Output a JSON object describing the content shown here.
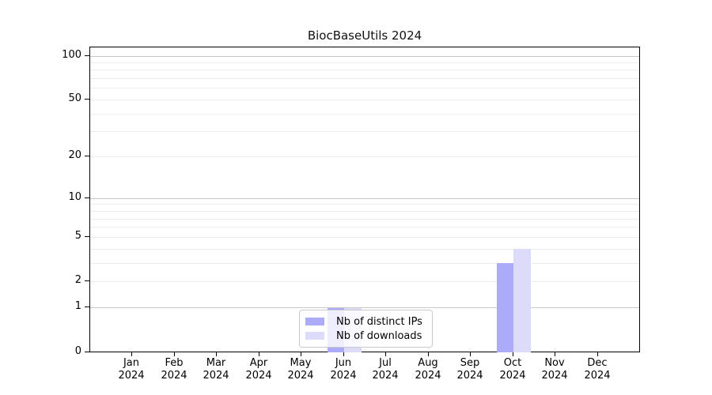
{
  "title": "BiocBaseUtils 2024",
  "chart_data": {
    "type": "bar",
    "title": "BiocBaseUtils 2024",
    "categories": [
      "Jan",
      "Feb",
      "Mar",
      "Apr",
      "May",
      "Jun",
      "Jul",
      "Aug",
      "Sep",
      "Oct",
      "Nov",
      "Dec"
    ],
    "year_label": "2024",
    "series": [
      {
        "name": "Nb of distinct IPs",
        "color": "#ababfa",
        "values": [
          0,
          0,
          0,
          0,
          0,
          1,
          0,
          0,
          0,
          3,
          0,
          0
        ]
      },
      {
        "name": "Nb of downloads",
        "color": "#dcdcfa",
        "values": [
          0,
          0,
          0,
          0,
          0,
          1,
          0,
          0,
          0,
          4,
          0,
          0
        ]
      }
    ],
    "yticks": [
      0,
      1,
      2,
      5,
      10,
      20,
      50,
      100
    ],
    "scale": "log1p",
    "ylim": [
      0,
      113
    ],
    "xlabel": "",
    "ylabel": "",
    "grid": "horizontal",
    "gridlines_minor": [
      2,
      3,
      4,
      5,
      6,
      7,
      8,
      9,
      20,
      30,
      40,
      50,
      60,
      70,
      80,
      90
    ],
    "gridlines_major": [
      1,
      10,
      100
    ],
    "legend_position": "inside-bottom-center"
  }
}
